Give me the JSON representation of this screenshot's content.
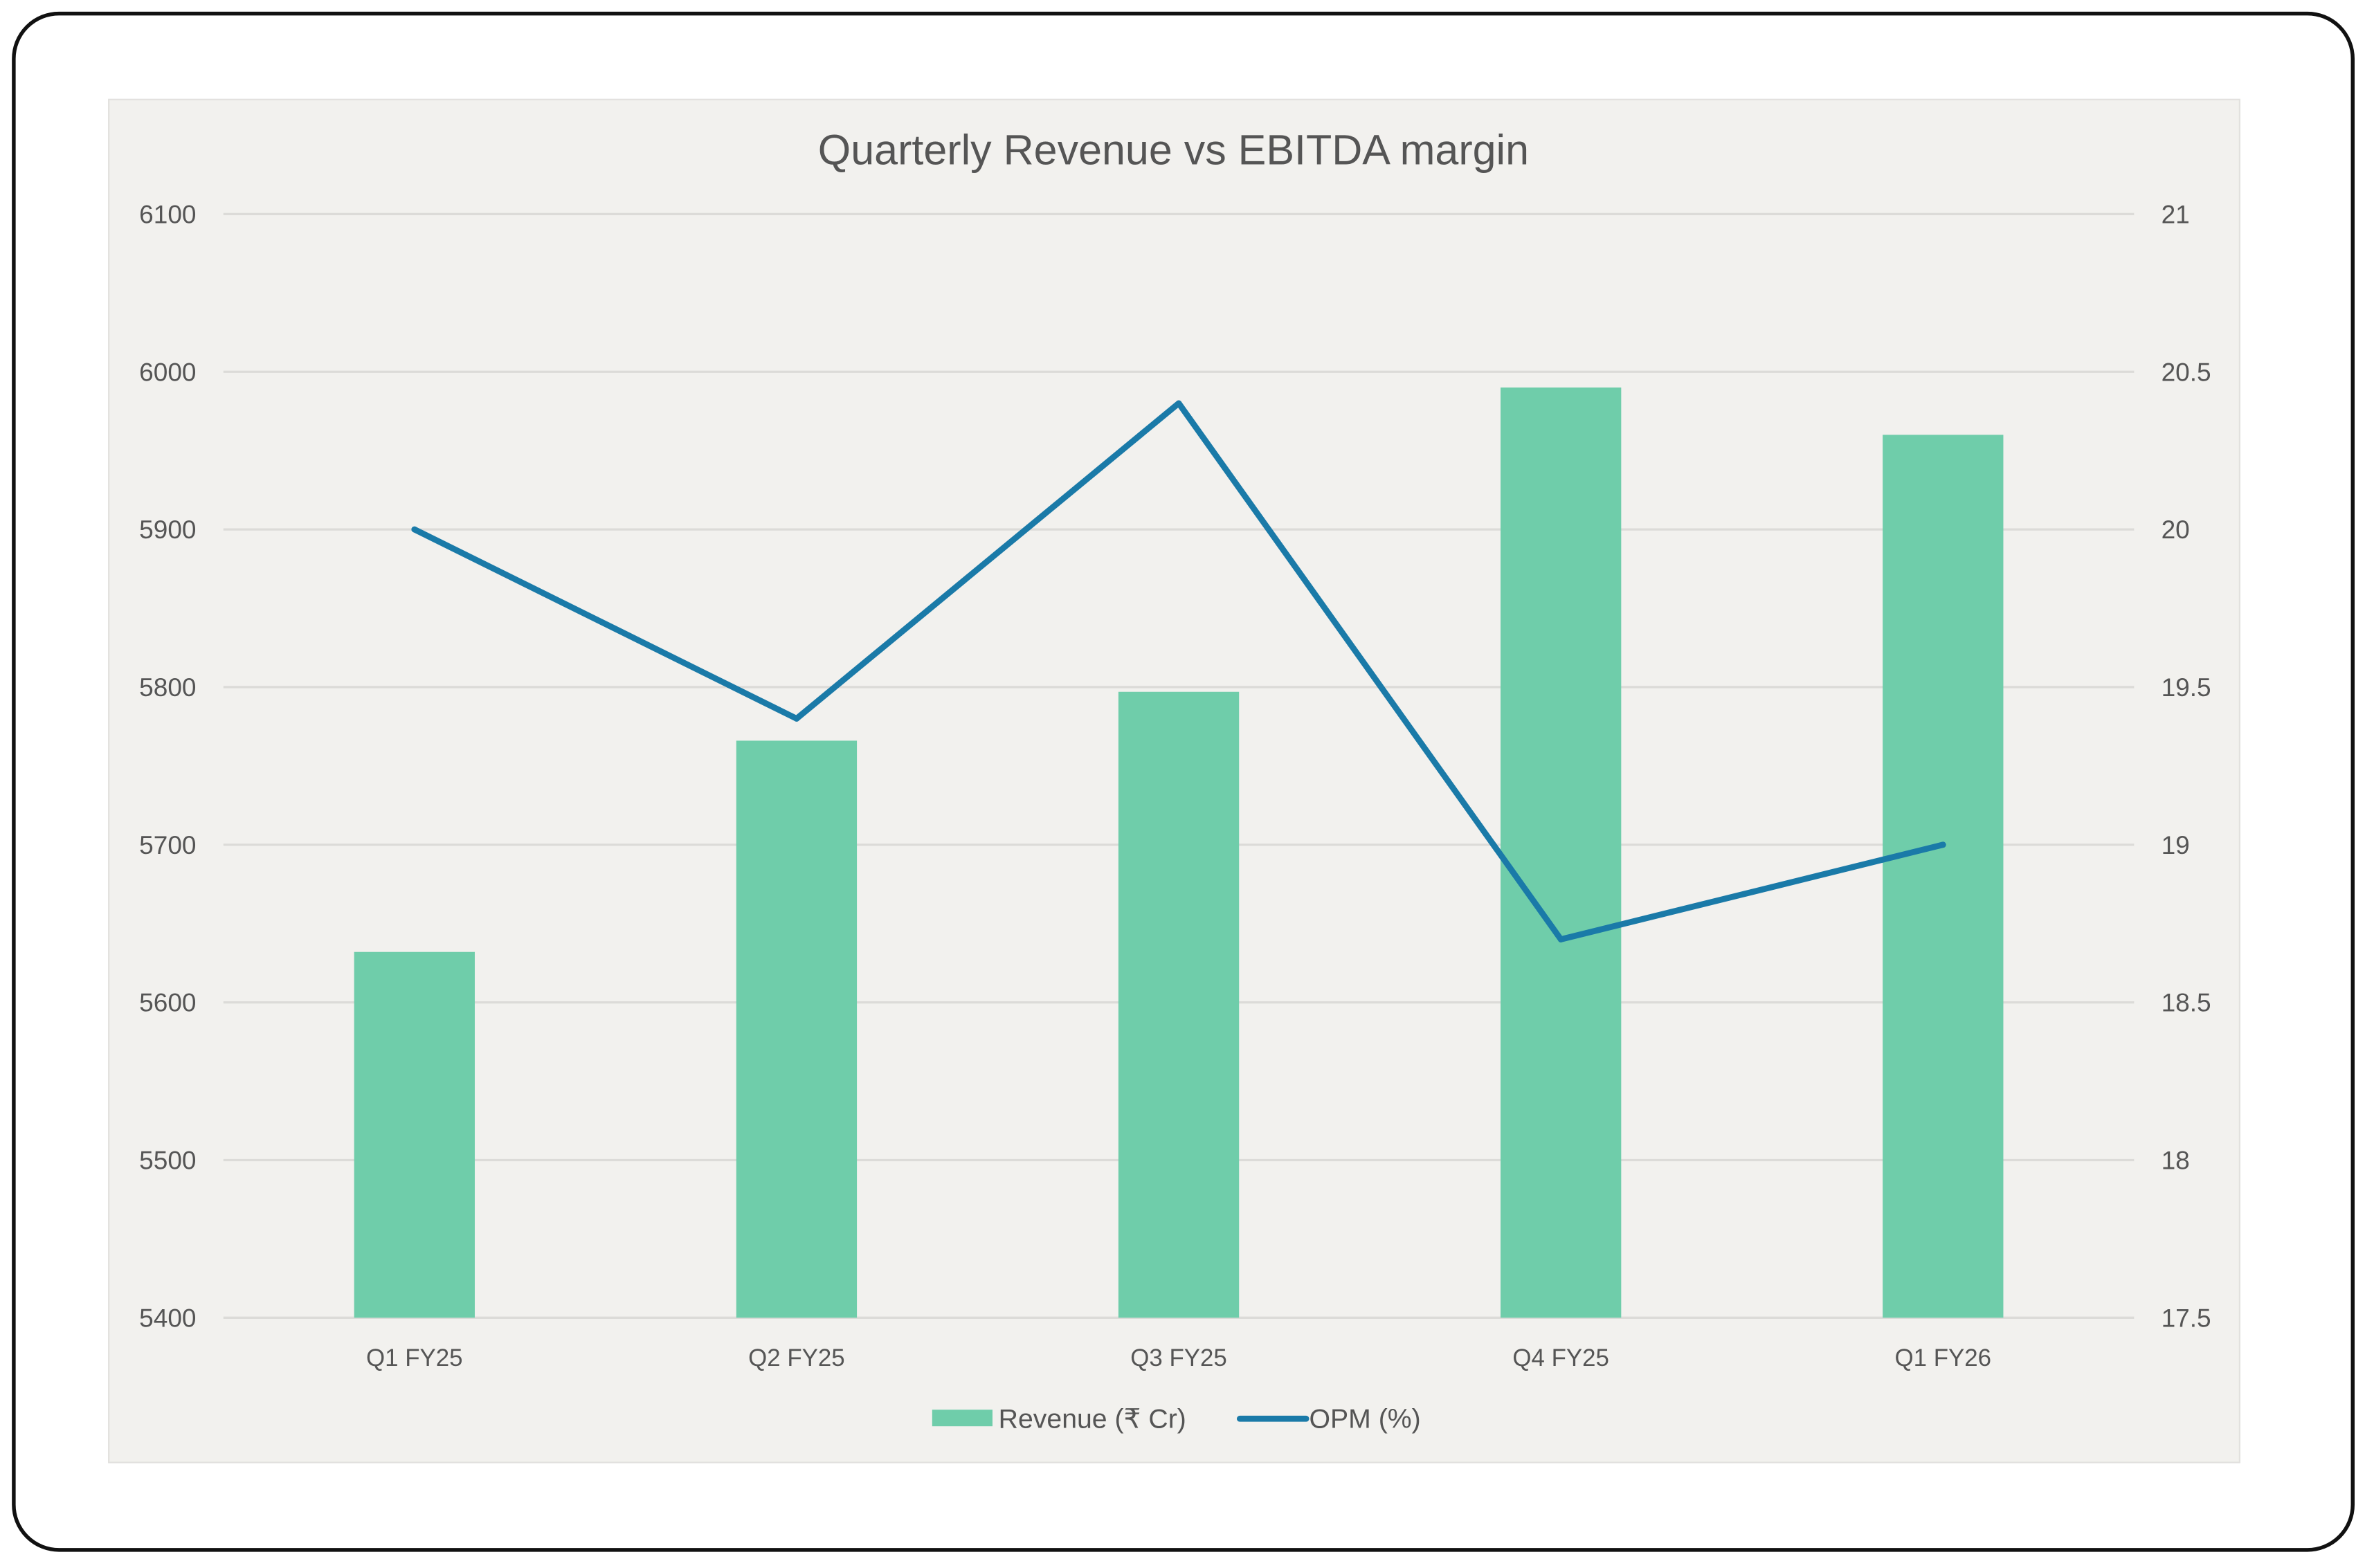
{
  "chart_data": {
    "type": "bar+line",
    "title": "Quarterly Revenue vs EBITDA margin",
    "categories": [
      "Q1 FY25",
      "Q2 FY25",
      "Q3 FY25",
      "Q4 FY25",
      "Q1 FY26"
    ],
    "series": [
      {
        "name": "Revenue (₹ Cr)",
        "type": "bar",
        "axis": "left",
        "color": "#6fcdaa",
        "values": [
          5632,
          5766,
          5797,
          5990,
          5960
        ]
      },
      {
        "name": "OPM (%)",
        "type": "line",
        "axis": "right",
        "color": "#1a7aa8",
        "values": [
          20.0,
          19.4,
          20.4,
          18.7,
          19.0
        ]
      }
    ],
    "left_axis": {
      "ylim": [
        5400,
        6100
      ],
      "ticks": [
        "5400",
        "5500",
        "5600",
        "5700",
        "5800",
        "5900",
        "6000",
        "6100"
      ]
    },
    "right_axis": {
      "ylim": [
        17.5,
        21
      ],
      "ticks": [
        "17.5",
        "18",
        "18.5",
        "19",
        "19.5",
        "20",
        "20.5",
        "21"
      ]
    },
    "grid": true,
    "legend": "bottom",
    "background": "#f2f1ee"
  }
}
